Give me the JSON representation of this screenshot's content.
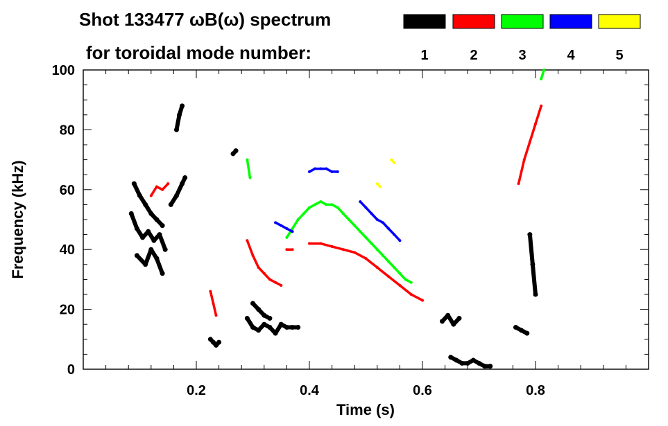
{
  "chart_data": {
    "type": "scatter",
    "title_line1": "Shot 133477 ωB(ω) spectrum",
    "title_line2": "for toroidal mode number:",
    "xlabel": "Time (s)",
    "ylabel": "Frequency (kHz)",
    "xlim": [
      0.0,
      1.0
    ],
    "ylim": [
      0,
      100
    ],
    "x_ticks": [
      0.2,
      0.4,
      0.6,
      0.8
    ],
    "x_tick_labels": [
      "0.2",
      "0.4",
      "0.6",
      "0.8"
    ],
    "y_ticks": [
      0,
      20,
      40,
      60,
      80,
      100
    ],
    "y_tick_labels": [
      "0",
      "20",
      "40",
      "60",
      "80",
      "100"
    ],
    "legend": [
      {
        "label": "1",
        "color": "#000000"
      },
      {
        "label": "2",
        "color": "#ff0000"
      },
      {
        "label": "3",
        "color": "#00ff00"
      },
      {
        "label": "4",
        "color": "#0000ff"
      },
      {
        "label": "5",
        "color": "#ffff00"
      }
    ],
    "series": [
      {
        "name": "n=1",
        "color": "#000000",
        "segments": [
          {
            "x": [
              0.085,
              0.095,
              0.105,
              0.115,
              0.125,
              0.135,
              0.145
            ],
            "y": [
              52,
              47,
              44,
              46,
              43,
              45,
              40
            ]
          },
          {
            "x": [
              0.09,
              0.1,
              0.11,
              0.12,
              0.13,
              0.14
            ],
            "y": [
              62,
              58,
              55,
              52,
              50,
              48
            ]
          },
          {
            "x": [
              0.095,
              0.11,
              0.12,
              0.13,
              0.14
            ],
            "y": [
              38,
              35,
              40,
              37,
              32
            ]
          },
          {
            "x": [
              0.155,
              0.165,
              0.175,
              0.18
            ],
            "y": [
              55,
              58,
              62,
              64
            ]
          },
          {
            "x": [
              0.165,
              0.17,
              0.175
            ],
            "y": [
              80,
              85,
              88
            ]
          },
          {
            "x": [
              0.225,
              0.23,
              0.235,
              0.24
            ],
            "y": [
              10,
              9,
              8,
              9
            ]
          },
          {
            "x": [
              0.265,
              0.27
            ],
            "y": [
              72,
              73
            ]
          },
          {
            "x": [
              0.29,
              0.3,
              0.31,
              0.32,
              0.33,
              0.34,
              0.35
            ],
            "y": [
              17,
              14,
              13,
              15,
              14,
              12,
              15
            ]
          },
          {
            "x": [
              0.3,
              0.31,
              0.32,
              0.33
            ],
            "y": [
              22,
              20,
              18,
              17
            ]
          },
          {
            "x": [
              0.35,
              0.36,
              0.37,
              0.38
            ],
            "y": [
              15,
              14,
              14,
              14
            ]
          },
          {
            "x": [
              0.635,
              0.645,
              0.655,
              0.665
            ],
            "y": [
              16,
              18,
              15,
              17
            ]
          },
          {
            "x": [
              0.65,
              0.66,
              0.67,
              0.68,
              0.69,
              0.7,
              0.71,
              0.72
            ],
            "y": [
              4,
              3,
              2,
              2,
              3,
              2,
              1,
              1
            ]
          },
          {
            "x": [
              0.79,
              0.795,
              0.8
            ],
            "y": [
              45,
              35,
              25
            ]
          },
          {
            "x": [
              0.765,
              0.775,
              0.785
            ],
            "y": [
              14,
              13,
              12
            ]
          }
        ]
      },
      {
        "name": "n=2",
        "color": "#ff0000",
        "segments": [
          {
            "x": [
              0.12,
              0.13,
              0.14,
              0.15
            ],
            "y": [
              58,
              61,
              60,
              62
            ]
          },
          {
            "x": [
              0.225,
              0.23,
              0.235
            ],
            "y": [
              26,
              22,
              18
            ]
          },
          {
            "x": [
              0.29,
              0.3,
              0.31,
              0.32,
              0.33,
              0.34,
              0.35
            ],
            "y": [
              43,
              38,
              34,
              32,
              30,
              29,
              28
            ]
          },
          {
            "x": [
              0.36,
              0.37
            ],
            "y": [
              40,
              40
            ]
          },
          {
            "x": [
              0.4,
              0.42,
              0.44,
              0.46,
              0.48,
              0.5,
              0.52,
              0.54,
              0.56,
              0.58,
              0.6
            ],
            "y": [
              42,
              42,
              41,
              40,
              39,
              37,
              34,
              31,
              28,
              25,
              23
            ]
          },
          {
            "x": [
              0.77,
              0.78,
              0.79,
              0.8,
              0.81
            ],
            "y": [
              62,
              70,
              76,
              82,
              88
            ]
          }
        ]
      },
      {
        "name": "n=3",
        "color": "#00ff00",
        "segments": [
          {
            "x": [
              0.29,
              0.295
            ],
            "y": [
              70,
              64
            ]
          },
          {
            "x": [
              0.36,
              0.37,
              0.38,
              0.39,
              0.4,
              0.41,
              0.42,
              0.43,
              0.44,
              0.45,
              0.46,
              0.47,
              0.48,
              0.49,
              0.5,
              0.51,
              0.52,
              0.53,
              0.54,
              0.55,
              0.56,
              0.57,
              0.58
            ],
            "y": [
              44,
              47,
              50,
              52,
              54,
              55,
              56,
              55,
              55,
              54,
              52,
              50,
              48,
              46,
              44,
              42,
              40,
              38,
              36,
              34,
              32,
              30,
              29
            ]
          },
          {
            "x": [
              0.81,
              0.815
            ],
            "y": [
              97,
              100
            ]
          }
        ]
      },
      {
        "name": "n=4",
        "color": "#0000ff",
        "segments": [
          {
            "x": [
              0.4,
              0.41,
              0.42,
              0.43,
              0.44,
              0.45
            ],
            "y": [
              66,
              67,
              67,
              67,
              66,
              66
            ]
          },
          {
            "x": [
              0.34,
              0.35,
              0.36,
              0.37
            ],
            "y": [
              49,
              48,
              47,
              46
            ]
          },
          {
            "x": [
              0.49,
              0.5,
              0.51,
              0.52,
              0.53,
              0.54,
              0.55,
              0.56
            ],
            "y": [
              56,
              54,
              52,
              50,
              49,
              47,
              45,
              43
            ]
          }
        ]
      },
      {
        "name": "n=5",
        "color": "#ffff00",
        "segments": [
          {
            "x": [
              0.52,
              0.525
            ],
            "y": [
              62,
              61
            ]
          },
          {
            "x": [
              0.545,
              0.55
            ],
            "y": [
              70,
              69
            ]
          }
        ]
      }
    ]
  }
}
